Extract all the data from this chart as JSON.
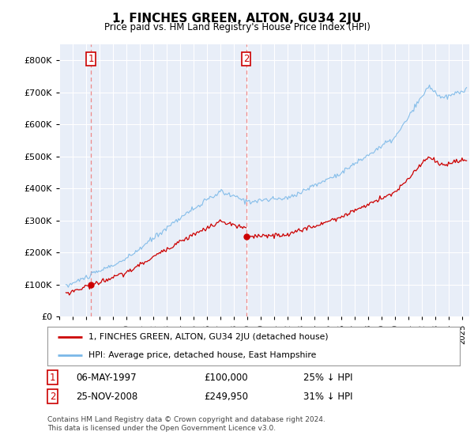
{
  "title": "1, FINCHES GREEN, ALTON, GU34 2JU",
  "subtitle": "Price paid vs. HM Land Registry's House Price Index (HPI)",
  "ylim": [
    0,
    850000
  ],
  "yticks": [
    0,
    100000,
    200000,
    300000,
    400000,
    500000,
    600000,
    700000,
    800000
  ],
  "xlim_start": 1995.3,
  "xlim_end": 2025.5,
  "hpi_color": "#7ab8e8",
  "price_color": "#cc0000",
  "dashed_color": "#ee8888",
  "bg_color": "#ffffff",
  "plot_bg_color": "#e8eef8",
  "grid_color": "#ffffff",
  "sale1_year": 1997.35,
  "sale1_price": 100000,
  "sale2_year": 2008.9,
  "sale2_price": 249950,
  "legend_label1": "1, FINCHES GREEN, ALTON, GU34 2JU (detached house)",
  "legend_label2": "HPI: Average price, detached house, East Hampshire",
  "table_row1_num": "1",
  "table_row1_date": "06-MAY-1997",
  "table_row1_price": "£100,000",
  "table_row1_hpi": "25% ↓ HPI",
  "table_row2_num": "2",
  "table_row2_date": "25-NOV-2008",
  "table_row2_price": "£249,950",
  "table_row2_hpi": "31% ↓ HPI",
  "footnote": "Contains HM Land Registry data © Crown copyright and database right 2024.\nThis data is licensed under the Open Government Licence v3.0."
}
